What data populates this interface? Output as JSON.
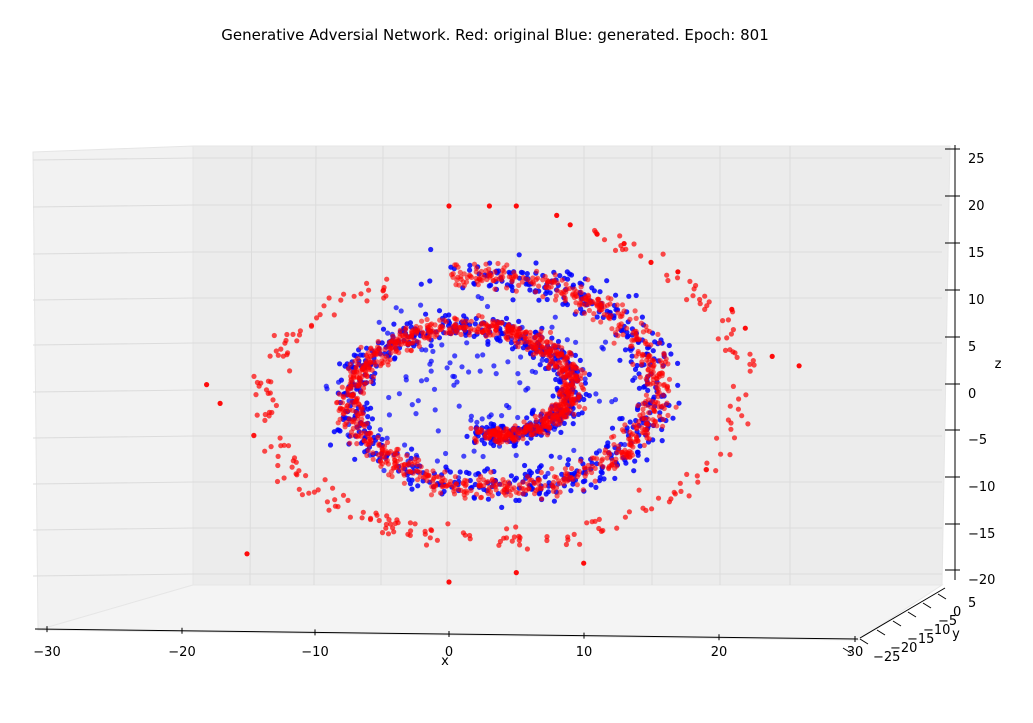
{
  "chart_data": {
    "type": "scatter",
    "projection": "3d",
    "title": "Generative Adversial Network. Red: original Blue: generated. Epoch: 801",
    "xlabel": "x",
    "ylabel": "y",
    "zlabel": "z",
    "xlim": [
      -30,
      30
    ],
    "ylim": [
      -25,
      5
    ],
    "zlim": [
      -20,
      25
    ],
    "x_ticks": [
      "−30",
      "−20",
      "−10",
      "0",
      "10",
      "20",
      "30"
    ],
    "y_ticks": [
      "5",
      "0",
      "−5",
      "−10",
      "−15",
      "−20",
      "−25"
    ],
    "z_ticks": [
      "25",
      "20",
      "15",
      "10",
      "5",
      "0",
      "−5",
      "−10",
      "−15",
      "−20"
    ],
    "grid": true,
    "series": [
      {
        "name": "original",
        "color": "#ff0000",
        "shape": "two-arm spiral (Swiss roll) with outer arm",
        "points_x": [
          -18,
          -17,
          0,
          3,
          5,
          8,
          9,
          11,
          13,
          15,
          17,
          21,
          22,
          24,
          26,
          -15,
          0,
          5,
          10
        ],
        "points_z": [
          1,
          -1,
          20,
          20,
          20,
          19,
          18,
          17,
          16,
          14,
          13,
          9,
          7,
          4,
          3,
          -17,
          -20,
          -19,
          -18
        ]
      },
      {
        "name": "generated",
        "color": "#0000ff",
        "shape": "spiral (Swiss roll) following the original"
      }
    ]
  }
}
